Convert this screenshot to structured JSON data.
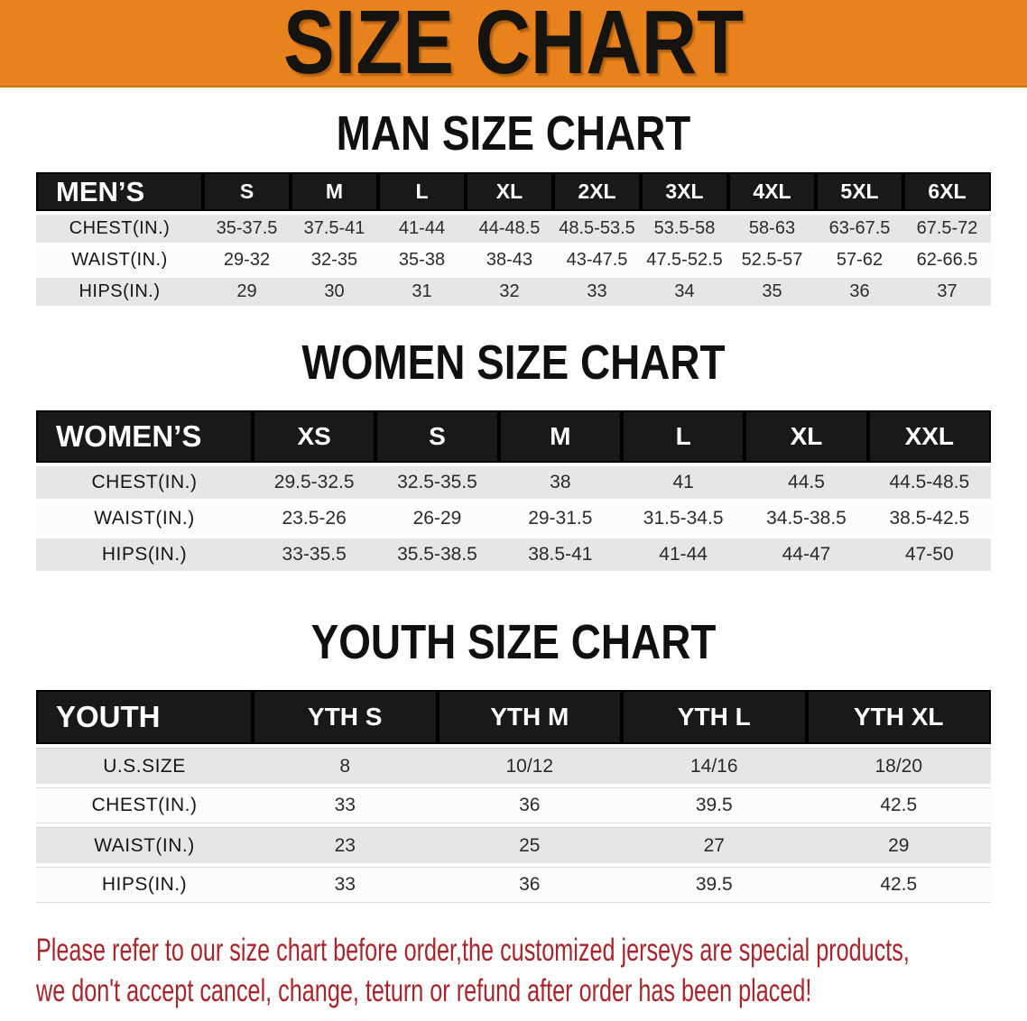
{
  "banner": {
    "title": "SIZE CHART"
  },
  "sections": {
    "man": {
      "heading": "MAN SIZE CHART"
    },
    "women": {
      "heading": "WOMEN SIZE CHART"
    },
    "youth": {
      "heading": "YOUTH SIZE CHART"
    }
  },
  "tables": {
    "men": {
      "label": "MEN’S",
      "columns": [
        "S",
        "M",
        "L",
        "XL",
        "2XL",
        "3XL",
        "4XL",
        "5XL",
        "6XL"
      ],
      "rows": [
        {
          "label": "CHEST(IN.)",
          "values": [
            "35-37.5",
            "37.5-41",
            "41-44",
            "44-48.5",
            "48.5-53.5",
            "53.5-58",
            "58-63",
            "63-67.5",
            "67.5-72"
          ]
        },
        {
          "label": "WAIST(IN.)",
          "values": [
            "29-32",
            "32-35",
            "35-38",
            "38-43",
            "43-47.5",
            "47.5-52.5",
            "52.5-57",
            "57-62",
            "62-66.5"
          ]
        },
        {
          "label": "HIPS(IN.)",
          "values": [
            "29",
            "30",
            "31",
            "32",
            "33",
            "34",
            "35",
            "36",
            "37"
          ]
        }
      ]
    },
    "women": {
      "label": "WOMEN’S",
      "columns": [
        "XS",
        "S",
        "M",
        "L",
        "XL",
        "XXL"
      ],
      "rows": [
        {
          "label": "CHEST(IN.)",
          "values": [
            "29.5-32.5",
            "32.5-35.5",
            "38",
            "41",
            "44.5",
            "44.5-48.5"
          ]
        },
        {
          "label": "WAIST(IN.)",
          "values": [
            "23.5-26",
            "26-29",
            "29-31.5",
            "31.5-34.5",
            "34.5-38.5",
            "38.5-42.5"
          ]
        },
        {
          "label": "HIPS(IN.)",
          "values": [
            "33-35.5",
            "35.5-38.5",
            "38.5-41",
            "41-44",
            "44-47",
            "47-50"
          ]
        }
      ]
    },
    "youth": {
      "label": "YOUTH",
      "columns": [
        "YTH S",
        "YTH M",
        "YTH L",
        "YTH XL"
      ],
      "rows": [
        {
          "label": "U.S.SIZE",
          "values": [
            "8",
            "10/12",
            "14/16",
            "18/20"
          ]
        },
        {
          "label": "CHEST(IN.)",
          "values": [
            "33",
            "36",
            "39.5",
            "42.5"
          ]
        },
        {
          "label": "WAIST(IN.)",
          "values": [
            "23",
            "25",
            "27",
            "29"
          ]
        },
        {
          "label": "HIPS(IN.)",
          "values": [
            "33",
            "36",
            "39.5",
            "42.5"
          ]
        }
      ]
    }
  },
  "disclaimer": {
    "line1": "Please refer to our size chart before order,the customized jerseys are special products,",
    "line2": "we don't accept cancel, change, teturn or refund after order has been placed!"
  },
  "colors": {
    "banner_orange": "#E8821D",
    "header_bar_black": "#191919",
    "row_gray": "#E6E6E8",
    "row_white": "#FCFCFC",
    "disclaimer_red": "#A8262B",
    "heading_black": "#101010"
  }
}
